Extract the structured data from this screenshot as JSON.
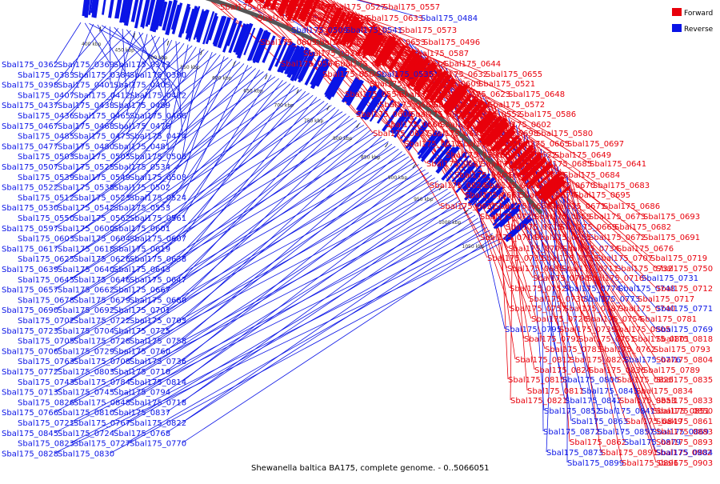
{
  "caption": "Shewanella baltica BA175, complete genome. - 0..5066051",
  "legend": [
    {
      "label": "Forward",
      "color": "#e8000b"
    },
    {
      "label": "Reverse",
      "color": "#0a14e6"
    }
  ],
  "colors": {
    "forward": "#e8000b",
    "reverse": "#0a14e6",
    "backbone": "#555555"
  },
  "ticks": [
    "400 kbp",
    "450 kbp",
    "500 kbp",
    "550 kbp",
    "600 kbp",
    "650 kbp",
    "700 kbp",
    "750 kbp",
    "800 kbp",
    "850 kbp",
    "900 kbp",
    "950 kbp",
    "1000 kbp",
    "1050 kbp"
  ],
  "labels_right": [
    {
      "t": "Sbal175_0464",
      "s": "f"
    },
    {
      "t": "Sbal175_0497",
      "s": "f"
    },
    {
      "t": "Sbal175_0527",
      "s": "f"
    },
    {
      "t": "Sbal175_0557",
      "s": "f"
    },
    {
      "t": "Sbal175_0588",
      "s": "f"
    },
    {
      "t": "Sbal175_0610",
      "s": "f"
    },
    {
      "t": "Sbal175_0633",
      "s": "f"
    },
    {
      "t": "Sbal175_0484",
      "s": "r"
    },
    {
      "t": "Sbal175_0509",
      "s": "r"
    },
    {
      "t": "Sbal175_0541",
      "s": "r"
    },
    {
      "t": "Sbal175_0573",
      "s": "f"
    },
    {
      "t": "Sbal175_0605",
      "s": "f"
    },
    {
      "t": "Sbal175_0630",
      "s": "f"
    },
    {
      "t": "Sbal175_0653",
      "s": "f"
    },
    {
      "t": "Sbal175_0496",
      "s": "f"
    },
    {
      "t": "Sbal175_0526",
      "s": "f"
    },
    {
      "t": "Sbal175_0556",
      "s": "f"
    },
    {
      "t": "Sbal175_0587",
      "s": "f"
    },
    {
      "t": "Sbal175_0564",
      "s": "f"
    },
    {
      "t": "Sbal175_0592",
      "s": "f"
    },
    {
      "t": "Sbal175_0614",
      "s": "f"
    },
    {
      "t": "Sbal175_0644",
      "s": "f"
    },
    {
      "t": "Sbal175_0504",
      "s": "f"
    },
    {
      "t": "Sbal175_0535",
      "s": "r"
    },
    {
      "t": "Sbal175_0632",
      "s": "f"
    },
    {
      "t": "Sbal175_0655",
      "s": "f"
    },
    {
      "t": "Sbal175_0584",
      "s": "f"
    },
    {
      "t": "Sbal175_0609",
      "s": "f"
    },
    {
      "t": "Sbal175_0521",
      "s": "f"
    },
    {
      "t": "Sbal175_0554",
      "s": "f"
    },
    {
      "t": "Sbal175_0595",
      "s": "f"
    },
    {
      "t": "Sbal175_0623",
      "s": "f"
    },
    {
      "t": "Sbal175_0648",
      "s": "f"
    },
    {
      "t": "Sbal175_0668",
      "s": "f"
    },
    {
      "t": "Sbal175_0537",
      "s": "f"
    },
    {
      "t": "Sbal175_0572",
      "s": "f"
    },
    {
      "t": "Sbal175_0608",
      "s": "f"
    },
    {
      "t": "Sbal175_0636",
      "s": "f"
    },
    {
      "t": "Sbal175_0552",
      "s": "f"
    },
    {
      "t": "Sbal175_0586",
      "s": "f"
    },
    {
      "t": "Sbal175_0666",
      "s": "f"
    },
    {
      "t": "Sbal175_0565",
      "s": "f"
    },
    {
      "t": "Sbal175_0602",
      "s": "f"
    },
    {
      "t": "Sbal175_0627",
      "s": "f"
    },
    {
      "t": "Sbal175_0652",
      "s": "f"
    },
    {
      "t": "Sbal175_0698",
      "s": "f"
    },
    {
      "t": "Sbal175_0580",
      "s": "f"
    },
    {
      "t": "Sbal175_0612",
      "s": "f"
    },
    {
      "t": "Sbal175_0642",
      "s": "f"
    },
    {
      "t": "Sbal175_0665",
      "s": "f"
    },
    {
      "t": "Sbal175_0697",
      "s": "f"
    },
    {
      "t": "Sbal175_0590",
      "s": "f"
    },
    {
      "t": "Sbal175_0622",
      "s": "f"
    },
    {
      "t": "Sbal175_0649",
      "s": "f"
    },
    {
      "t": "Sbal175_0687",
      "s": "f"
    },
    {
      "t": "Sbal175_0599",
      "s": "f"
    },
    {
      "t": "Sbal175_0685",
      "s": "f"
    },
    {
      "t": "Sbal175_0641",
      "s": "f"
    },
    {
      "t": "Sbal175_0664",
      "s": "f"
    },
    {
      "t": "Sbal175_0613",
      "s": "f"
    },
    {
      "t": "Sbal175_0684",
      "s": "f"
    },
    {
      "t": "Sbal175_0624",
      "s": "f"
    },
    {
      "t": "Sbal175_0651",
      "s": "f"
    },
    {
      "t": "Sbal175_0670",
      "s": "f"
    },
    {
      "t": "Sbal175_0683",
      "s": "f"
    },
    {
      "t": "Sbal175_0661",
      "s": "f"
    },
    {
      "t": "Sbal175_0674",
      "s": "f"
    },
    {
      "t": "Sbal175_0695",
      "s": "f"
    },
    {
      "t": "Sbal175_0637",
      "s": "f"
    },
    {
      "t": "Sbal175_0650",
      "s": "f"
    },
    {
      "t": "Sbal175_0671",
      "s": "f"
    },
    {
      "t": "Sbal175_0686",
      "s": "f"
    },
    {
      "t": "Sbal175_0720",
      "s": "f"
    },
    {
      "t": "Sbal175_0659",
      "s": "f"
    },
    {
      "t": "Sbal175_0673",
      "s": "f"
    },
    {
      "t": "Sbal175_0693",
      "s": "f"
    },
    {
      "t": "Sbal175_0715",
      "s": "f"
    },
    {
      "t": "Sbal175_0669",
      "s": "f"
    },
    {
      "t": "Sbal175_0682",
      "s": "f"
    },
    {
      "t": "Sbal175_0714",
      "s": "f"
    },
    {
      "t": "Sbal175_0735",
      "s": "f"
    },
    {
      "t": "Sbal175_0672",
      "s": "f"
    },
    {
      "t": "Sbal175_0691",
      "s": "f"
    },
    {
      "t": "Sbal175_0709",
      "s": "f"
    },
    {
      "t": "Sbal175_0734",
      "s": "f"
    },
    {
      "t": "Sbal175_0676",
      "s": "f"
    },
    {
      "t": "Sbal175_0733",
      "s": "f"
    },
    {
      "t": "Sbal175_0753",
      "s": "f"
    },
    {
      "t": "Sbal175_0707",
      "s": "f"
    },
    {
      "t": "Sbal175_0719",
      "s": "f"
    },
    {
      "t": "Sbal175_0688",
      "s": "f"
    },
    {
      "t": "Sbal175_0711",
      "s": "f"
    },
    {
      "t": "Sbal175_0732",
      "s": "f"
    },
    {
      "t": "Sbal175_0750",
      "s": "f"
    },
    {
      "t": "Sbal175_0700",
      "s": "f"
    },
    {
      "t": "Sbal175_0716",
      "s": "f"
    },
    {
      "t": "Sbal175_0731",
      "s": "r"
    },
    {
      "t": "Sbal175_0752",
      "s": "f"
    },
    {
      "t": "Sbal175_0774",
      "s": "r"
    },
    {
      "t": "Sbal175_0748",
      "s": "r"
    },
    {
      "t": "Sbal175_0712",
      "s": "f"
    },
    {
      "t": "Sbal175_0730",
      "s": "f"
    },
    {
      "t": "Sbal175_0773",
      "s": "r"
    },
    {
      "t": "Sbal175_0717",
      "s": "f"
    },
    {
      "t": "Sbal175_0757",
      "s": "f"
    },
    {
      "t": "Sbal175_0787",
      "s": "f"
    },
    {
      "t": "Sbal175_0740",
      "s": "f"
    },
    {
      "t": "Sbal175_0771",
      "s": "r"
    },
    {
      "t": "Sbal175_0726",
      "s": "f"
    },
    {
      "t": "Sbal175_0754",
      "s": "f"
    },
    {
      "t": "Sbal175_0781",
      "s": "f"
    },
    {
      "t": "Sbal175_0795",
      "s": "r"
    },
    {
      "t": "Sbal175_0739",
      "s": "f"
    },
    {
      "t": "Sbal175_0805",
      "s": "f"
    },
    {
      "t": "Sbal175_0769",
      "s": "r"
    },
    {
      "t": "Sbal175_0792",
      "s": "f"
    },
    {
      "t": "Sbal175_0751",
      "s": "f"
    },
    {
      "t": "Sbal175_0801",
      "s": "f"
    },
    {
      "t": "Sbal175_0818",
      "s": "f"
    },
    {
      "t": "Sbal175_0783",
      "s": "f"
    },
    {
      "t": "Sbal175_0762",
      "s": "f"
    },
    {
      "t": "Sbal175_0793",
      "s": "f"
    },
    {
      "t": "Sbal175_0812",
      "s": "f"
    },
    {
      "t": "Sbal175_0827",
      "s": "f"
    },
    {
      "t": "Sbal175_0776",
      "s": "r"
    },
    {
      "t": "Sbal175_0804",
      "s": "f"
    },
    {
      "t": "Sbal175_0824",
      "s": "f"
    },
    {
      "t": "Sbal175_0836",
      "s": "f"
    },
    {
      "t": "Sbal175_0789",
      "s": "f"
    },
    {
      "t": "Sbal175_0815",
      "s": "f"
    },
    {
      "t": "Sbal175_0800",
      "s": "r"
    },
    {
      "t": "Sbal175_0825",
      "s": "f"
    },
    {
      "t": "Sbal175_0835",
      "s": "f"
    },
    {
      "t": "Sbal175_0811",
      "s": "f"
    },
    {
      "t": "Sbal175_0843",
      "s": "r"
    },
    {
      "t": "Sbal175_0834",
      "s": "f"
    },
    {
      "t": "Sbal175_0821",
      "s": "f"
    },
    {
      "t": "Sbal175_0842",
      "s": "r"
    },
    {
      "t": "Sbal175_0853",
      "s": "f"
    },
    {
      "t": "Sbal175_0833",
      "s": "f"
    },
    {
      "t": "Sbal175_0852",
      "s": "r"
    },
    {
      "t": "Sbal175_0841",
      "s": "r"
    },
    {
      "t": "Sbal175_0851",
      "s": "f"
    },
    {
      "t": "Sbal175_0850",
      "s": "f"
    },
    {
      "t": "Sbal175_0863",
      "s": "r"
    },
    {
      "t": "Sbal175_0849",
      "s": "f"
    },
    {
      "t": "Sbal175_0861",
      "s": "f"
    },
    {
      "t": "Sbal175_0872",
      "s": "r"
    },
    {
      "t": "Sbal175_0857",
      "s": "r"
    },
    {
      "t": "Sbal175_0869",
      "s": "r"
    },
    {
      "t": "Sbal175_0883",
      "s": "f"
    },
    {
      "t": "Sbal175_0862",
      "s": "f"
    },
    {
      "t": "Sbal175_0879",
      "s": "r"
    },
    {
      "t": "Sbal175_0893",
      "s": "f"
    },
    {
      "t": "Sbal175_0873",
      "s": "r"
    },
    {
      "t": "Sbal175_0891",
      "s": "f"
    },
    {
      "t": "Sbal175_0902",
      "s": "f"
    },
    {
      "t": "Sbal175_0884",
      "s": "r"
    },
    {
      "t": "Sbal175_0899",
      "s": "r"
    },
    {
      "t": "Sbal175_0896",
      "s": "f"
    },
    {
      "t": "Sbal175_0903",
      "s": "f"
    }
  ],
  "labels_left": [
    "Sbal175_0362",
    "Sbal175_0369",
    "Sbal175_0373",
    "Sbal175_0383",
    "Sbal175_0384",
    "Sbal175_0390",
    "Sbal175_0398",
    "Sbal175_0401",
    "Sbal175_0405",
    "Sbal175_0407",
    "Sbal175_0412",
    "Sbal175_0422",
    "Sbal175_0437",
    "Sbal175_0438",
    "Sbal175_0489",
    "Sbal175_0436",
    "Sbal175_0465",
    "Sbal175_0466",
    "Sbal175_0467",
    "Sbal175_0468",
    "Sbal175_0476",
    "Sbal175_0485",
    "Sbal175_0473",
    "Sbal175_0474",
    "Sbal175_0477",
    "Sbal175_0480",
    "Sbal175_0481",
    "Sbal175_0503",
    "Sbal175_0505",
    "Sbal175_0506",
    "Sbal175_0507",
    "Sbal175_0525",
    "Sbal175_0534",
    "Sbal175_0539",
    "Sbal175_0549",
    "Sbal175_0508",
    "Sbal175_0522",
    "Sbal175_0538",
    "Sbal175_0502",
    "Sbal175_0512",
    "Sbal175_0523",
    "Sbal175_0524",
    "Sbal175_0530",
    "Sbal175_0542",
    "Sbal175_0553",
    "Sbal175_0550",
    "Sbal175_0562",
    "Sbal175_0561",
    "Sbal175_0597",
    "Sbal175_0600",
    "Sbal175_0601",
    "Sbal175_0603",
    "Sbal175_0604",
    "Sbal175_0607",
    "Sbal175_0617",
    "Sbal175_0618",
    "Sbal175_0619",
    "Sbal175_0625",
    "Sbal175_0626",
    "Sbal175_0638",
    "Sbal175_0639",
    "Sbal175_0640",
    "Sbal175_0643",
    "Sbal175_0645",
    "Sbal175_0646",
    "Sbal175_0647",
    "Sbal175_0657",
    "Sbal175_0662",
    "Sbal175_0667",
    "Sbal175_0678",
    "Sbal175_0679",
    "Sbal175_0680",
    "Sbal175_0690",
    "Sbal175_0692",
    "Sbal175_0701",
    "Sbal175_0702",
    "Sbal175_0722",
    "Sbal175_0703",
    "Sbal175_0723",
    "Sbal175_0704",
    "Sbal175_0725",
    "Sbal175_0705",
    "Sbal175_0728",
    "Sbal175_0758",
    "Sbal175_0706",
    "Sbal175_0729",
    "Sbal175_0760",
    "Sbal175_0763",
    "Sbal175_0708",
    "Sbal175_0736",
    "Sbal175_0772",
    "Sbal175_0803",
    "Sbal175_0710",
    "Sbal175_0743",
    "Sbal175_0784",
    "Sbal175_0814",
    "Sbal175_0713",
    "Sbal175_0745",
    "Sbal175_0794",
    "Sbal175_0826",
    "Sbal175_0848",
    "Sbal175_0718",
    "Sbal175_0766",
    "Sbal175_0810",
    "Sbal175_0837",
    "Sbal175_0721",
    "Sbal175_0767",
    "Sbal175_0822",
    "Sbal175_0845",
    "Sbal175_0724",
    "Sbal175_0768",
    "Sbal175_0823",
    "Sbal175_0727",
    "Sbal175_0770",
    "Sbal175_0828",
    "Sbal175_0830"
  ]
}
